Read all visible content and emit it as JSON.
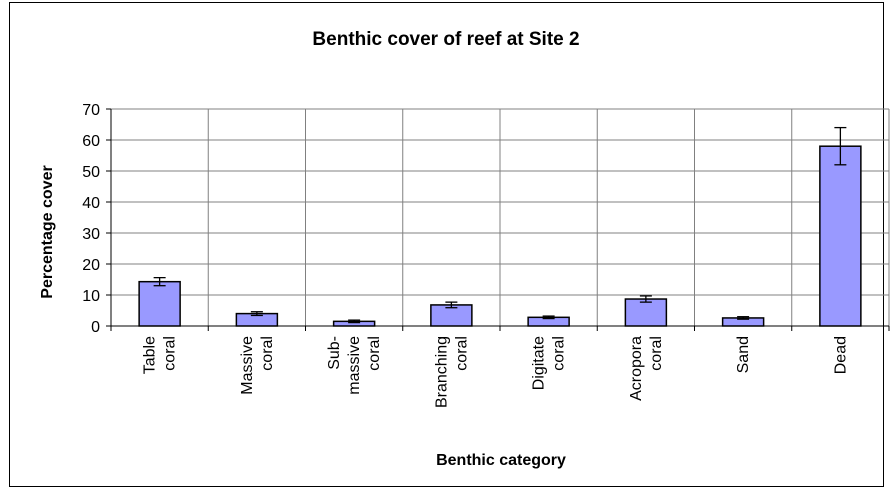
{
  "chart_data": {
    "type": "bar",
    "title": "Benthic cover of reef at Site 2",
    "xlabel": "Benthic category",
    "ylabel": "Percentage cover",
    "ylim": [
      0,
      70
    ],
    "yticks": [
      0,
      10,
      20,
      30,
      40,
      50,
      60,
      70
    ],
    "grid": true,
    "categories": [
      [
        "Table",
        "coral"
      ],
      [
        "Massive",
        "coral"
      ],
      [
        "Sub-",
        "massive",
        "coral"
      ],
      [
        "Branching",
        "coral"
      ],
      [
        "Digitate",
        "coral"
      ],
      [
        "Acropora",
        "coral"
      ],
      [
        "Sand"
      ],
      [
        "Dead"
      ]
    ],
    "values": [
      14.3,
      4.0,
      1.5,
      6.8,
      2.8,
      8.7,
      2.6,
      58.0
    ],
    "error": [
      1.3,
      0.6,
      0.4,
      0.9,
      0.4,
      1.0,
      0.4,
      6.0
    ],
    "colors": {
      "bar_fill": "#9999ff",
      "bar_stroke": "#000000",
      "grid": "#808080"
    }
  }
}
